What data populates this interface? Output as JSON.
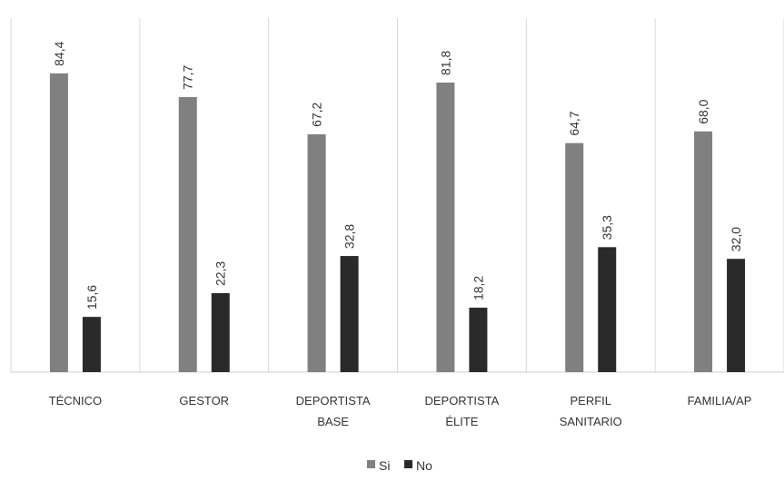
{
  "chart_data": {
    "type": "bar",
    "categories": [
      [
        "TÉCNICO"
      ],
      [
        "GESTOR"
      ],
      [
        "DEPORTISTA",
        "BASE"
      ],
      [
        "DEPORTISTA",
        "ÉLITE"
      ],
      [
        "PERFIL",
        "SANITARIO"
      ],
      [
        "FAMILIA/AP"
      ]
    ],
    "series": [
      {
        "name": "Si",
        "values": [
          84.4,
          77.7,
          67.2,
          81.8,
          64.7,
          68.0
        ],
        "labels": [
          "84,4",
          "77,7",
          "67,2",
          "81,8",
          "64,7",
          "68,0"
        ],
        "color": "#808080"
      },
      {
        "name": "No",
        "values": [
          15.6,
          22.3,
          32.8,
          18.2,
          35.3,
          32.0
        ],
        "labels": [
          "15,6",
          "22,3",
          "32,8",
          "18,2",
          "35,3",
          "32,0"
        ],
        "color": "#2a2a2a"
      }
    ],
    "ylim": [
      0,
      100
    ],
    "grid": "vertical category separators",
    "legend": "bottom-center",
    "title": "",
    "xlabel": "",
    "ylabel": ""
  }
}
